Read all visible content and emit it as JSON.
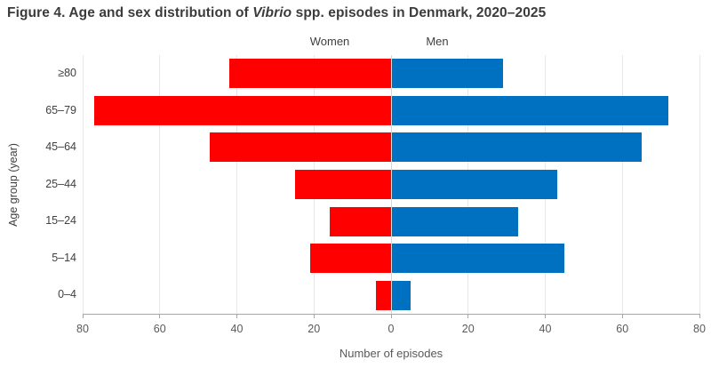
{
  "figure": {
    "title_prefix": "Figure 4. Age and sex distribution of ",
    "title_italic": "Vibrio",
    "title_suffix": " spp. episodes in Denmark, 2020–2025"
  },
  "chart_data": {
    "type": "bar",
    "subtype": "population-pyramid",
    "title": "Figure 4. Age and sex distribution of Vibrio spp. episodes in Denmark, 2020–2025",
    "categories": [
      "≥80",
      "65–79",
      "45–64",
      "25–44",
      "15–24",
      "5–14",
      "0–4"
    ],
    "series": [
      {
        "name": "Women",
        "side": "left",
        "color": "#ff0000",
        "values": [
          42,
          77,
          47,
          25,
          16,
          21,
          4
        ]
      },
      {
        "name": "Men",
        "side": "right",
        "color": "#0070c0",
        "values": [
          29,
          72,
          65,
          43,
          33,
          45,
          5
        ]
      }
    ],
    "xlabel": "Number of episodes",
    "ylabel": "Age group (year)",
    "x_ticks": [
      "80",
      "60",
      "40",
      "20",
      "0",
      "20",
      "40",
      "60",
      "80"
    ],
    "xlim_each_side": [
      0,
      80
    ],
    "grid": true,
    "legend_position": "top-center",
    "colors": {
      "women": "#ff0000",
      "men": "#0070c0",
      "gridline": "#e8e8e8",
      "zero_gridline": "#d6d6d6",
      "axis_line": "#a6a6a6",
      "tick_label": "#595959",
      "text": "#404040",
      "title": "#3b3b3b"
    }
  }
}
